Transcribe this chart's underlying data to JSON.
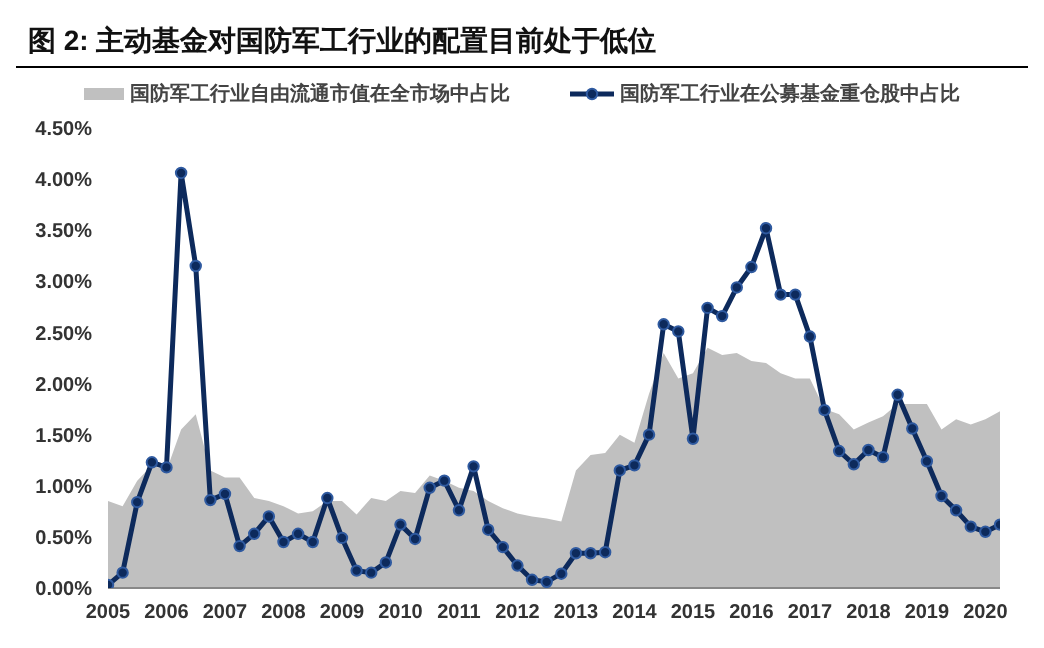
{
  "chart_data": {
    "type": "line",
    "title": "图 2:  主动基金对国防军工行业的配置目前处于低位",
    "legend": "top",
    "grid": false,
    "x": [
      2005,
      2005.25,
      2005.5,
      2005.75,
      2006,
      2006.25,
      2006.5,
      2006.75,
      2007,
      2007.25,
      2007.5,
      2007.75,
      2008,
      2008.25,
      2008.5,
      2008.75,
      2009,
      2009.25,
      2009.5,
      2009.75,
      2010,
      2010.25,
      2010.5,
      2010.75,
      2011,
      2011.25,
      2011.5,
      2011.75,
      2012,
      2012.25,
      2012.5,
      2012.75,
      2013,
      2013.25,
      2013.5,
      2013.75,
      2014,
      2014.25,
      2014.5,
      2014.75,
      2015,
      2015.25,
      2015.5,
      2015.75,
      2016,
      2016.25,
      2016.5,
      2016.75,
      2017,
      2017.25,
      2017.5,
      2017.75,
      2018,
      2018.25,
      2018.5,
      2018.75,
      2019,
      2019.25,
      2019.5,
      2019.75,
      2020,
      2020.25
    ],
    "xlim": [
      2005,
      2020.25
    ],
    "xticks": [
      2005,
      2006,
      2007,
      2008,
      2009,
      2010,
      2011,
      2012,
      2013,
      2014,
      2015,
      2016,
      2017,
      2018,
      2019,
      2020
    ],
    "ylim": [
      0,
      4.5
    ],
    "yticks": [
      {
        "value": 0,
        "label": "0.00%"
      },
      {
        "value": 0.5,
        "label": "0.50%"
      },
      {
        "value": 1,
        "label": "1.00%"
      },
      {
        "value": 1.5,
        "label": "1.50%"
      },
      {
        "value": 2,
        "label": "2.00%"
      },
      {
        "value": 2.5,
        "label": "2.50%"
      },
      {
        "value": 3,
        "label": "3.00%"
      },
      {
        "value": 3.5,
        "label": "3.50%"
      },
      {
        "value": 4,
        "label": "4.00%"
      },
      {
        "value": 4.5,
        "label": "4.50%"
      }
    ],
    "series": [
      {
        "name": "国防军工行业自由流通市值在全市场中占比",
        "type": "area",
        "color": "#c0c0c0",
        "values": [
          0.85,
          0.8,
          1.05,
          1.2,
          1.15,
          1.55,
          1.7,
          1.15,
          1.08,
          1.08,
          0.88,
          0.85,
          0.8,
          0.73,
          0.75,
          0.85,
          0.85,
          0.72,
          0.88,
          0.85,
          0.95,
          0.93,
          1.1,
          1.05,
          0.98,
          0.95,
          0.85,
          0.78,
          0.73,
          0.7,
          0.68,
          0.65,
          1.15,
          1.3,
          1.32,
          1.5,
          1.42,
          1.9,
          2.3,
          2.05,
          2.1,
          2.35,
          2.28,
          2.3,
          2.22,
          2.2,
          2.1,
          2.05,
          2.05,
          1.75,
          1.7,
          1.55,
          1.62,
          1.68,
          1.8,
          1.8,
          1.8,
          1.55,
          1.65,
          1.6,
          1.65,
          1.73
        ]
      },
      {
        "name": "国防军工行业在公募基金重仓股中占比",
        "marker": "circle",
        "color": "#0d2a5c",
        "values": [
          0.03,
          0.15,
          0.84,
          1.23,
          1.18,
          4.06,
          3.15,
          0.86,
          0.92,
          0.41,
          0.53,
          0.7,
          0.45,
          0.53,
          0.45,
          0.88,
          0.49,
          0.17,
          0.15,
          0.25,
          0.62,
          0.48,
          0.98,
          1.05,
          0.76,
          1.19,
          0.57,
          0.4,
          0.22,
          0.08,
          0.06,
          0.14,
          0.34,
          0.34,
          0.35,
          1.15,
          1.2,
          1.5,
          2.58,
          2.51,
          1.46,
          2.74,
          2.66,
          2.94,
          3.14,
          3.52,
          2.87,
          2.87,
          2.46,
          1.74,
          1.34,
          1.21,
          1.35,
          1.28,
          1.89,
          1.56,
          1.24,
          0.9,
          0.76,
          0.6,
          0.55,
          0.62
        ]
      }
    ]
  }
}
